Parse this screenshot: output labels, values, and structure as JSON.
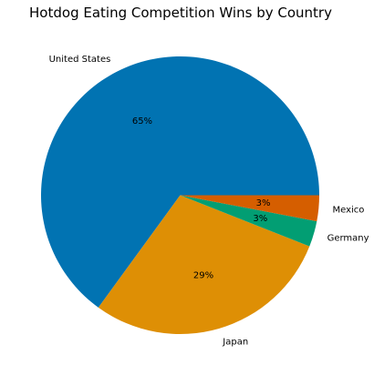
{
  "chart_data": {
    "type": "pie",
    "title": "Hotdog Eating Competition Wins by Country",
    "categories": [
      "United States",
      "Japan",
      "Germany",
      "Mexico"
    ],
    "values": [
      65,
      29,
      3,
      3
    ],
    "percent_labels": [
      "65%",
      "29%",
      "3%",
      "3%"
    ],
    "colors": [
      "#0173b2",
      "#de8f05",
      "#029e73",
      "#d55e00"
    ],
    "start_angle_deg": 0,
    "direction": "counterclockwise"
  }
}
